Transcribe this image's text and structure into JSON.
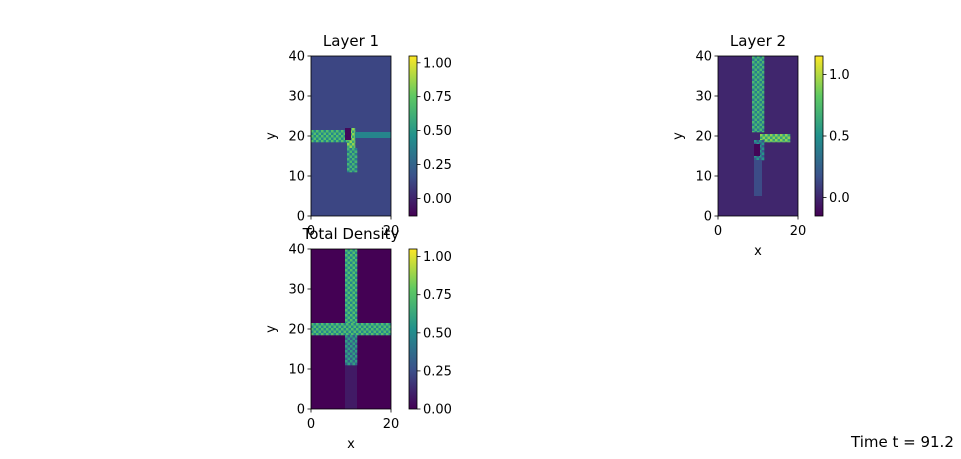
{
  "colors": {
    "colormap": "viridis",
    "viridis_stops": [
      "#440154",
      "#3b528b",
      "#21918c",
      "#5ec962",
      "#fde725"
    ]
  },
  "chart_data": [
    {
      "type": "heatmap",
      "title": "Layer 1",
      "xlabel": "",
      "ylabel": "y",
      "xlim": [
        0,
        20
      ],
      "ylim": [
        0,
        40
      ],
      "xticks": [
        "0",
        "20"
      ],
      "yticks": [
        "0",
        "10",
        "20",
        "30",
        "40"
      ],
      "background_value": 0.12,
      "clim": [
        -0.13,
        1.05
      ],
      "colorbar_ticks": [
        "0.00",
        "0.25",
        "0.50",
        "0.75",
        "1.00"
      ],
      "colorbar_tick_values": [
        0,
        0.25,
        0.5,
        0.75,
        1.0
      ],
      "regions": [
        {
          "x0": 0,
          "x1": 9,
          "y0": 18.5,
          "y1": 21.5,
          "value": 0.55,
          "pattern": true
        },
        {
          "x0": 9,
          "x1": 11,
          "y0": 17,
          "y1": 22,
          "value": 0.7,
          "pattern": true
        },
        {
          "x0": 11,
          "x1": 20,
          "y0": 19.5,
          "y1": 21,
          "value": 0.4,
          "pattern": false
        },
        {
          "x0": 9,
          "x1": 11.5,
          "y0": 11,
          "y1": 17,
          "value": 0.5,
          "pattern": true
        },
        {
          "x0": 8.5,
          "x1": 10,
          "y0": 19,
          "y1": 22,
          "value": -0.1,
          "pattern": false
        }
      ]
    },
    {
      "type": "heatmap",
      "title": "Layer 2",
      "xlabel": "x",
      "ylabel": "y",
      "xlim": [
        0,
        20
      ],
      "ylim": [
        0,
        40
      ],
      "xticks": [
        "0",
        "20"
      ],
      "yticks": [
        "0",
        "10",
        "20",
        "30",
        "40"
      ],
      "background_value": 0.0,
      "clim": [
        -0.15,
        1.15
      ],
      "colorbar_ticks": [
        "0.0",
        "0.5",
        "1.0"
      ],
      "colorbar_tick_values": [
        0,
        0.5,
        1.0
      ],
      "regions": [
        {
          "x0": 8.5,
          "x1": 11.5,
          "y0": 21,
          "y1": 40,
          "value": 0.55,
          "pattern": true
        },
        {
          "x0": 10.5,
          "x1": 18,
          "y0": 18.5,
          "y1": 20.5,
          "value": 0.75,
          "pattern": true
        },
        {
          "x0": 9,
          "x1": 11.5,
          "y0": 14,
          "y1": 19,
          "value": 0.35,
          "pattern": true
        },
        {
          "x0": 9,
          "x1": 10.5,
          "y0": 15,
          "y1": 18,
          "value": -0.13,
          "pattern": false
        },
        {
          "x0": 9,
          "x1": 11,
          "y0": 5,
          "y1": 14,
          "value": 0.15,
          "pattern": false
        }
      ]
    },
    {
      "type": "heatmap",
      "title": "Total Density",
      "xlabel": "x",
      "ylabel": "y",
      "xlim": [
        0,
        20
      ],
      "ylim": [
        0,
        40
      ],
      "xticks": [
        "0",
        "20"
      ],
      "yticks": [
        "0",
        "10",
        "20",
        "30",
        "40"
      ],
      "background_value": 0.0,
      "clim": [
        0,
        1.05
      ],
      "colorbar_ticks": [
        "0.00",
        "0.25",
        "0.50",
        "0.75",
        "1.00"
      ],
      "colorbar_tick_values": [
        0,
        0.25,
        0.5,
        0.75,
        1.0
      ],
      "regions": [
        {
          "x0": 8.5,
          "x1": 11.5,
          "y0": 0,
          "y1": 40,
          "value": 0.08,
          "pattern": false
        },
        {
          "x0": 8.5,
          "x1": 11.5,
          "y0": 21,
          "y1": 40,
          "value": 0.6,
          "pattern": true
        },
        {
          "x0": 0,
          "x1": 20,
          "y0": 18.5,
          "y1": 21.5,
          "value": 0.6,
          "pattern": true
        },
        {
          "x0": 8.5,
          "x1": 11.5,
          "y0": 11,
          "y1": 18.5,
          "value": 0.45,
          "pattern": true
        }
      ]
    }
  ],
  "caption": "Time t = 91.2"
}
